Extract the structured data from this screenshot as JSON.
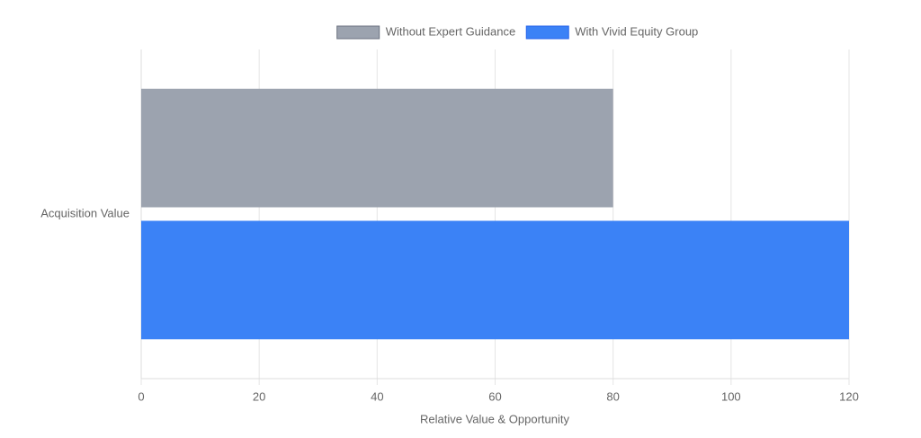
{
  "chart_data": {
    "type": "bar",
    "orientation": "horizontal",
    "categories": [
      "Acquisition Value"
    ],
    "series": [
      {
        "name": "Without Expert Guidance",
        "color": "#9ca3af",
        "values": [
          80
        ]
      },
      {
        "name": "With Vivid Equity Group",
        "color": "#3b82f6",
        "values": [
          120
        ]
      }
    ],
    "x_label": "Relative Value & Opportunity",
    "xlim": [
      0,
      120
    ],
    "xticks": [
      0,
      20,
      40,
      60,
      80,
      100,
      120
    ],
    "grid": true,
    "legend": "top"
  }
}
